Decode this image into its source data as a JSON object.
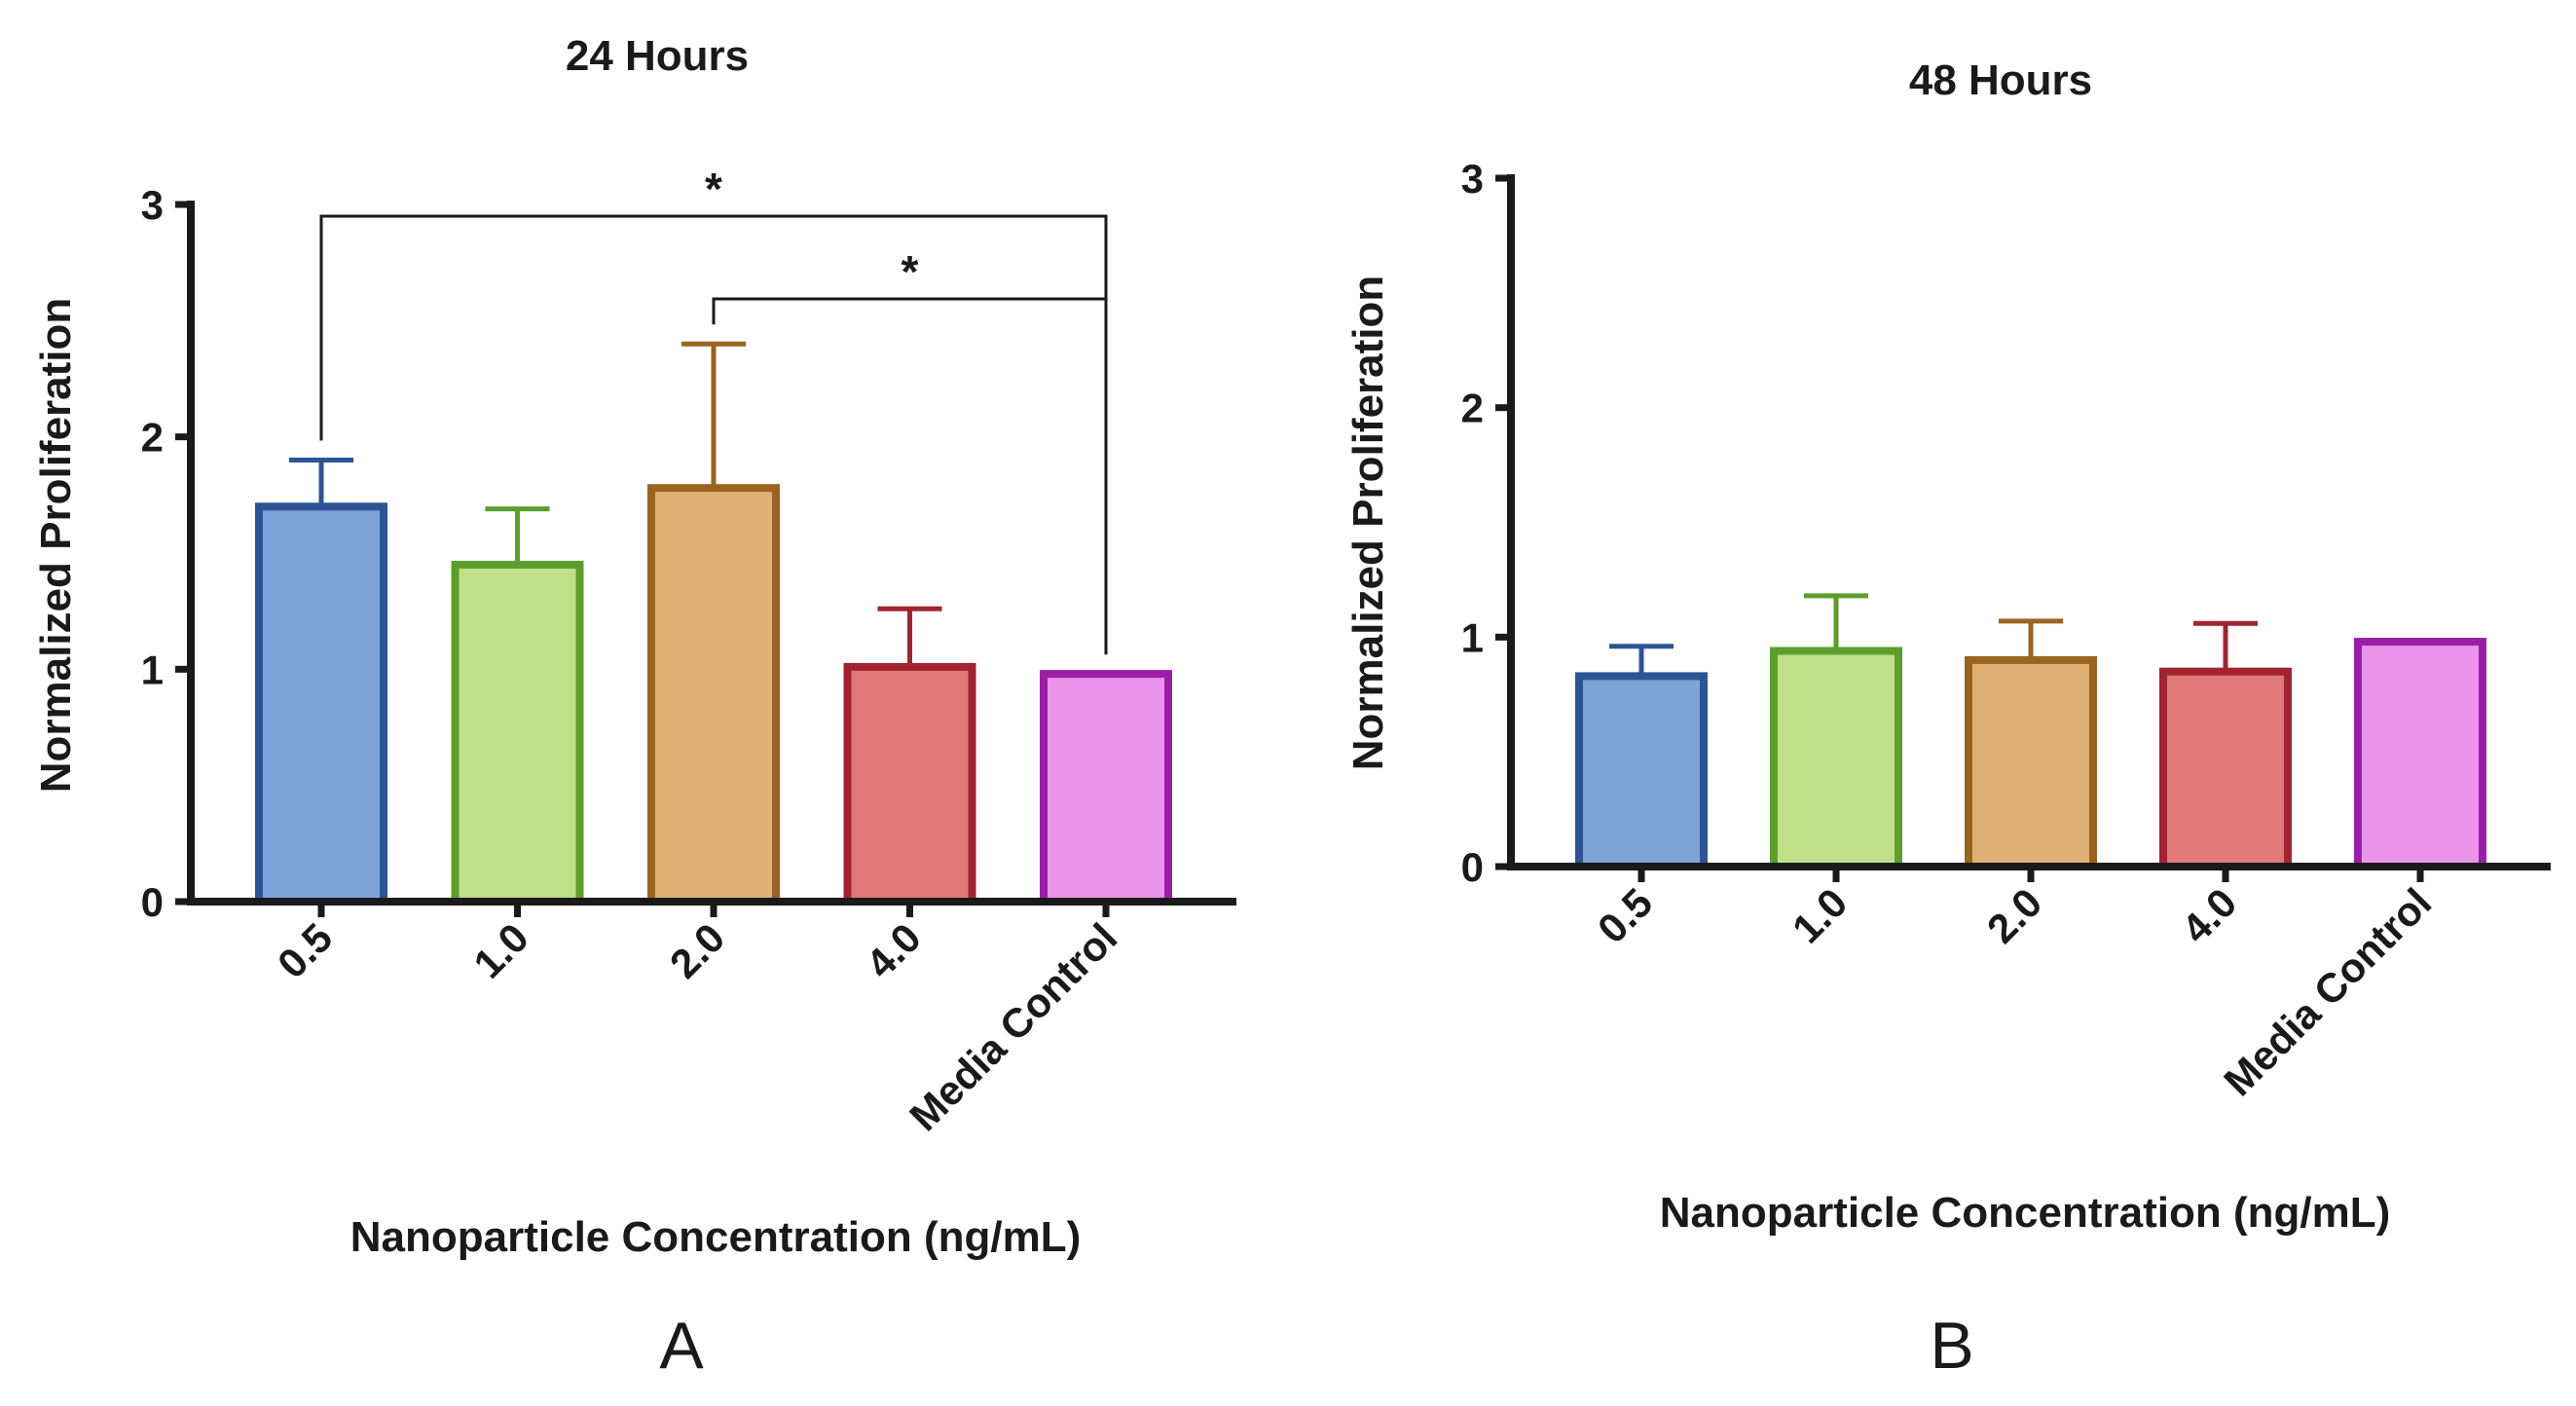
{
  "chart_data": [
    {
      "type": "bar",
      "panel_label": "A",
      "title": "24 Hours",
      "xlabel": "Nanoparticle Concentration (ng/mL)",
      "ylabel": "Normalized Proliferation",
      "ylim": [
        0,
        3
      ],
      "yticks": [
        "0",
        "1",
        "2",
        "3"
      ],
      "categories": [
        "0.5",
        "1.0",
        "2.0",
        "4.0",
        "Media Control"
      ],
      "values": [
        1.7,
        1.45,
        1.78,
        1.01,
        0.98
      ],
      "error_upper": [
        1.9,
        1.69,
        2.4,
        1.26,
        null
      ],
      "fill_colors": [
        "#7ea3d6",
        "#bfe089",
        "#e0b174",
        "#e07a7a",
        "#e994ea"
      ],
      "stroke_colors": [
        "#2d5596",
        "#5c9e2b",
        "#9a6420",
        "#a32330",
        "#9b1ea8"
      ],
      "significance": [
        {
          "from": "0.5",
          "to": "Media Control",
          "label": "*"
        },
        {
          "from": "2.0",
          "to": "Media Control",
          "label": "*"
        }
      ]
    },
    {
      "type": "bar",
      "panel_label": "B",
      "title": "48 Hours",
      "xlabel": "Nanoparticle Concentration  (ng/mL)",
      "ylabel": "Normalized Proliferation",
      "ylim": [
        0,
        3
      ],
      "yticks": [
        "0",
        "1",
        "2",
        "3"
      ],
      "categories": [
        "0.5",
        "1.0",
        "2.0",
        "4.0",
        "Media Control"
      ],
      "values": [
        0.83,
        0.94,
        0.9,
        0.85,
        0.98
      ],
      "error_upper": [
        0.96,
        1.18,
        1.07,
        1.06,
        null
      ],
      "fill_colors": [
        "#7ea3d6",
        "#bfe089",
        "#e0b174",
        "#e07a7a",
        "#e994ea"
      ],
      "stroke_colors": [
        "#2d5596",
        "#5c9e2b",
        "#9a6420",
        "#a32330",
        "#9b1ea8"
      ],
      "significance": []
    }
  ]
}
